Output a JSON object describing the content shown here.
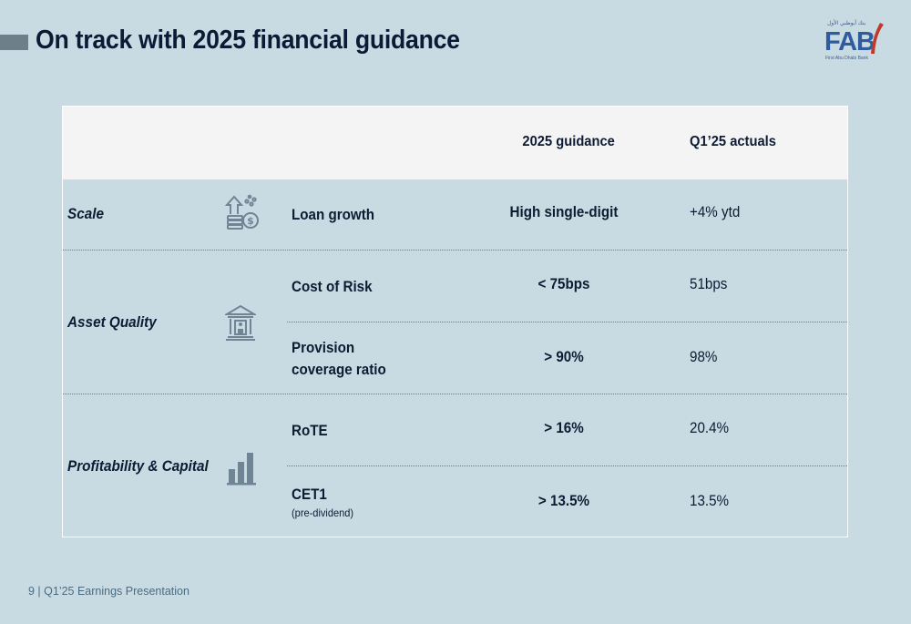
{
  "header": {
    "title": "On track with 2025 financial guidance"
  },
  "logo": {
    "text": "FAB",
    "arabic_text": "بنك أبوظبي الأول",
    "subtext": "First Abu Dhabi Bank",
    "accent_color": "#c0392b",
    "brand_color": "#2f5c9e"
  },
  "table": {
    "columns": {
      "guidance": "2025 guidance",
      "actuals": "Q1’25 actuals"
    },
    "categories": [
      {
        "label": "Scale",
        "icon": "money-growth-icon",
        "rows": [
          {
            "metric": "Loan growth",
            "guidance": "High single-digit",
            "actual": "+4% ytd"
          }
        ]
      },
      {
        "label": "Asset Quality",
        "icon": "bank-building-icon",
        "rows": [
          {
            "metric": "Cost of Risk",
            "guidance": "< 75bps",
            "actual": "51bps"
          },
          {
            "metric_line1": "Provision",
            "metric_line2": "coverage ratio",
            "guidance": "> 90%",
            "actual": "98%"
          }
        ]
      },
      {
        "label": "Profitability &  Capital",
        "icon": "bar-chart-icon",
        "rows": [
          {
            "metric": "RoTE",
            "guidance": "> 16%",
            "actual": "20.4%"
          },
          {
            "metric": "CET1",
            "metric_sub": "(pre-dividend)",
            "guidance": "> 13.5%",
            "actual": "13.5%"
          }
        ]
      }
    ]
  },
  "footer": {
    "text": "9 | Q1’25 Earnings Presentation"
  }
}
